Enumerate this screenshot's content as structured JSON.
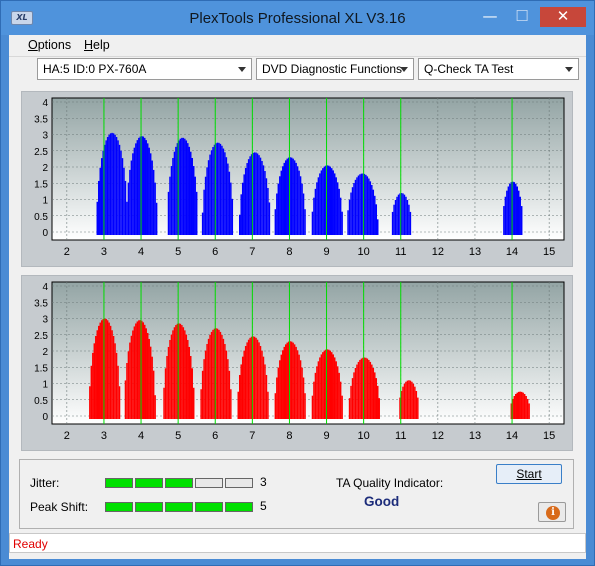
{
  "window": {
    "title": "PlexTools Professional XL V3.16",
    "logo_text": "XL"
  },
  "window_controls": {
    "minimize": "—",
    "maximize": "☐",
    "close": "✕"
  },
  "menu": {
    "items": [
      {
        "label": "Options",
        "accel": "O",
        "rest": "ptions"
      },
      {
        "label": "Help",
        "accel": "H",
        "rest": "elp"
      }
    ]
  },
  "toolbar": {
    "drive": "HA:5 ID:0  PX-760A",
    "function": "DVD Diagnostic Functions",
    "test": "Q-Check TA Test"
  },
  "colors": {
    "jitter_series": "#0000ff",
    "peak_series": "#ff0000",
    "marker_lines": "#00dd00",
    "status_text": "#e00000",
    "meter_on": "#00e000"
  },
  "chart_data": [
    {
      "type": "bar",
      "series_color": "#0000ff",
      "grid": true,
      "ylim": [
        0,
        4
      ],
      "y_ticks": [
        "0",
        "0.5",
        "1",
        "1.5",
        "2",
        "2.5",
        "3",
        "3.5",
        "4"
      ],
      "xlim": [
        1.6,
        15.4
      ],
      "x_ticks": [
        "2",
        "3",
        "4",
        "5",
        "6",
        "7",
        "8",
        "9",
        "10",
        "11",
        "12",
        "13",
        "14",
        "15"
      ],
      "markers": [
        3,
        4,
        5,
        6,
        7,
        8,
        9,
        10,
        11,
        14
      ],
      "peaks": [
        {
          "x": 3.2,
          "value": 3.05
        },
        {
          "x": 4.0,
          "value": 2.95
        },
        {
          "x": 5.1,
          "value": 2.9
        },
        {
          "x": 6.05,
          "value": 2.75
        },
        {
          "x": 7.05,
          "value": 2.45
        },
        {
          "x": 8.0,
          "value": 2.3
        },
        {
          "x": 9.0,
          "value": 2.05
        },
        {
          "x": 9.95,
          "value": 1.8
        },
        {
          "x": 11.0,
          "value": 1.2
        },
        {
          "x": 14.0,
          "value": 1.55
        }
      ]
    },
    {
      "type": "bar",
      "series_color": "#ff0000",
      "grid": true,
      "ylim": [
        0,
        4
      ],
      "y_ticks": [
        "0",
        "0.5",
        "1",
        "1.5",
        "2",
        "2.5",
        "3",
        "3.5",
        "4"
      ],
      "xlim": [
        1.6,
        15.4
      ],
      "x_ticks": [
        "2",
        "3",
        "4",
        "5",
        "6",
        "7",
        "8",
        "9",
        "10",
        "11",
        "12",
        "13",
        "14",
        "15"
      ],
      "markers": [
        3,
        4,
        5,
        6,
        7,
        8,
        9,
        10,
        11,
        14
      ],
      "peaks": [
        {
          "x": 3.0,
          "value": 3.0
        },
        {
          "x": 3.95,
          "value": 2.95
        },
        {
          "x": 5.0,
          "value": 2.85
        },
        {
          "x": 6.0,
          "value": 2.7
        },
        {
          "x": 7.0,
          "value": 2.45
        },
        {
          "x": 8.0,
          "value": 2.3
        },
        {
          "x": 9.0,
          "value": 2.05
        },
        {
          "x": 10.0,
          "value": 1.8
        },
        {
          "x": 11.2,
          "value": 1.1
        },
        {
          "x": 14.2,
          "value": 0.75
        }
      ]
    }
  ],
  "results": {
    "jitter_label": "Jitter:",
    "jitter_value": "3",
    "jitter_level": 3,
    "peak_shift_label": "Peak Shift:",
    "peak_shift_value": "5",
    "peak_shift_level": 5,
    "meter_max": 5,
    "ta_label": "TA Quality Indicator:",
    "ta_quality": "Good"
  },
  "buttons": {
    "start": "Start",
    "info_icon": "info-icon",
    "info_glyph": "i"
  },
  "status": {
    "text": "Ready"
  }
}
